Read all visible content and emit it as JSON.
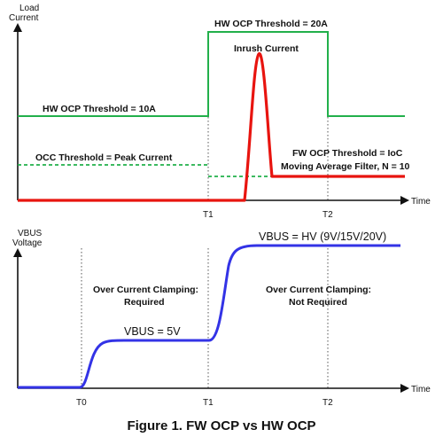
{
  "top_panel": {
    "y_axis_label_line1": "Load",
    "y_axis_label_line2": "Current",
    "x_axis_label": "Time",
    "hw_ocp_20a": "HW OCP Threshold = 20A",
    "hw_ocp_10a": "HW OCP Threshold = 10A",
    "inrush": "Inrush Current",
    "occ_threshold": "OCC Threshold = Peak Current",
    "fw_ocp_line1": "FW OCP Threshold = IoC",
    "fw_ocp_line2": "Moving Average Filter, N = 10",
    "tick_t1": "T1",
    "tick_t2": "T2"
  },
  "bottom_panel": {
    "y_axis_label_line1": "VBUS",
    "y_axis_label_line2": "Voltage",
    "x_axis_label": "Time",
    "vbus_hv": "VBUS = HV (9V/15V/20V)",
    "vbus_5v": "VBUS = 5V",
    "clamp_required_line1": "Over Current Clamping:",
    "clamp_required_line2": "Required",
    "clamp_not_required_line1": "Over Current Clamping:",
    "clamp_not_required_line2": "Not Required",
    "tick_t0": "T0",
    "tick_t1": "T1",
    "tick_t2": "T2"
  },
  "caption": "Figure 1. FW OCP vs HW OCP",
  "colors": {
    "hw_ocp_line": "#22b04b",
    "occ_dashed": "#22b04b",
    "load_current": "#e8140f",
    "vbus": "#3333e6",
    "axis": "#111111"
  }
}
